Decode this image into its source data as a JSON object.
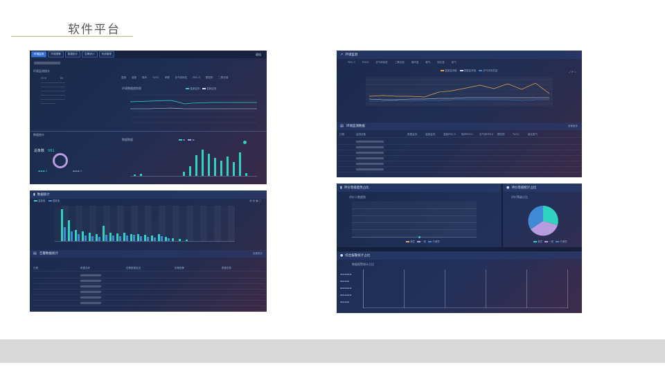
{
  "slide": {
    "title": "软件平台"
  },
  "shot1": {
    "tabs": [
      "环境监测",
      "环境报警",
      "数据统计",
      "告警统计",
      "系统管理"
    ],
    "right_link": "退出",
    "section1_title": "环境监测统计",
    "legend_items": [
      "温度",
      "湿度",
      "噪声",
      "TVOC",
      "甲醛",
      "总气体挥发",
      "PM2.5",
      "颗粒物",
      "二氧化碳",
      "PM10"
    ],
    "line_chart_title": "环境数据趋势图",
    "line_legend": [
      "温度监测",
      "湿度监测"
    ],
    "section2_title": "数据统计",
    "total_label": "总条数",
    "total_value": "561",
    "bar_chart_title": "数据数据"
  },
  "shot2": {
    "title": "数据统计",
    "legend": [
      "温度值",
      "湿度值"
    ],
    "section2_title": "告警数据统计",
    "right_link": "查看更多",
    "cols": [
      "日期",
      "数据名称",
      "告警数据发送",
      "告警报警",
      "数据总数"
    ]
  },
  "shot3": {
    "title": "环境监测",
    "top_legend": [
      "PM2.5",
      "PM10",
      "总气体挥发",
      "二氧化硫",
      "噪声温",
      "氨气",
      "硫化氢",
      "氮气"
    ],
    "chart_legend": [
      "温度监测值",
      "湿度监测值",
      "总气体挥发量"
    ],
    "section2_title": "环境监测数据",
    "right_link": "查看更多",
    "cols": [
      "日期",
      "监测设备",
      "数据监测",
      "温度监测",
      "湿度PM2.5",
      "噪声PM10",
      "总气体PM10",
      "颗粒物",
      "TVOC",
      "硫化氢气",
      "数据条总",
      "氨氮二氧化碳"
    ]
  },
  "shot4": {
    "title_left": "评价等级趋势占比",
    "chart_left_title": "评价人数趋势",
    "title_right": "评价等级统计占比",
    "chart_right_title": "评价等级占比",
    "legend_left": [
      "满意",
      "一般",
      "不满意"
    ],
    "legend_right": [
      "满意",
      "一般",
      "不满意"
    ],
    "section2_title": "综合报警统计占比",
    "bottom_chart_title": "数据报警统计占比"
  },
  "colors": {
    "teal": "#2fd3c0",
    "purple": "#b79ce0",
    "blue": "#3e8ad6",
    "orange": "#f0a657",
    "accent": "#2f6fd6"
  }
}
